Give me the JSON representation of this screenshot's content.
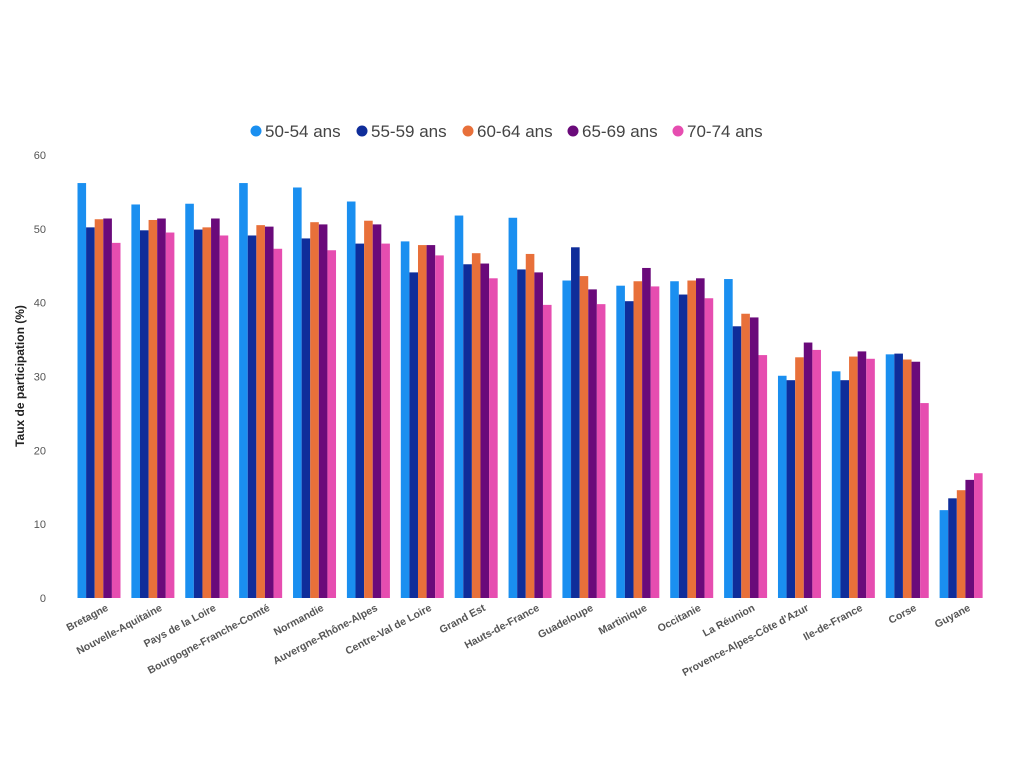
{
  "chart_data": {
    "type": "bar",
    "title": "",
    "xlabel": "",
    "ylabel": "Taux de participation (%)",
    "ylim": [
      0,
      60
    ],
    "yticks": [
      0,
      10,
      20,
      30,
      40,
      50,
      60
    ],
    "grid": false,
    "legend_position": "top",
    "categories": [
      "Bretagne",
      "Nouvelle-Aquitaine",
      "Pays de la Loire",
      "Bourgogne-Franche-Comté",
      "Normandie",
      "Auvergne-Rhône-Alpes",
      "Centre-Val de Loire",
      "Grand Est",
      "Hauts-de-France",
      "Guadeloupe",
      "Martinique",
      "Occitanie",
      "La Réunion",
      "Provence-Alpes-Côte d'Azur",
      "Ile-de-France",
      "Corse",
      "Guyane"
    ],
    "series": [
      {
        "name": "50-54 ans",
        "color": "#1a8ff0",
        "values": [
          56.2,
          53.3,
          53.4,
          56.2,
          55.6,
          53.7,
          48.3,
          51.8,
          51.5,
          43.0,
          42.3,
          42.9,
          43.2,
          30.1,
          30.7,
          33.0,
          11.9
        ]
      },
      {
        "name": "55-59 ans",
        "color": "#0f2d9a",
        "values": [
          50.2,
          49.8,
          49.9,
          49.1,
          48.7,
          48.0,
          44.1,
          45.2,
          44.5,
          47.5,
          40.2,
          41.1,
          36.8,
          29.5,
          29.5,
          33.1,
          13.5
        ]
      },
      {
        "name": "60-64 ans",
        "color": "#e8703a",
        "values": [
          51.3,
          51.2,
          50.2,
          50.5,
          50.9,
          51.1,
          47.8,
          46.7,
          46.6,
          43.6,
          42.9,
          43.0,
          38.5,
          32.6,
          32.7,
          32.3,
          14.6
        ]
      },
      {
        "name": "65-69 ans",
        "color": "#6a0a7a",
        "values": [
          51.4,
          51.4,
          51.4,
          50.3,
          50.6,
          50.6,
          47.8,
          45.3,
          44.1,
          41.8,
          44.7,
          43.3,
          38.0,
          34.6,
          33.4,
          32.0,
          16.0
        ]
      },
      {
        "name": "70-74 ans",
        "color": "#e64db0",
        "values": [
          48.1,
          49.5,
          49.1,
          47.3,
          47.1,
          48.0,
          46.4,
          43.3,
          39.7,
          39.8,
          42.2,
          40.6,
          32.9,
          33.6,
          32.4,
          26.4,
          16.9
        ]
      }
    ]
  }
}
